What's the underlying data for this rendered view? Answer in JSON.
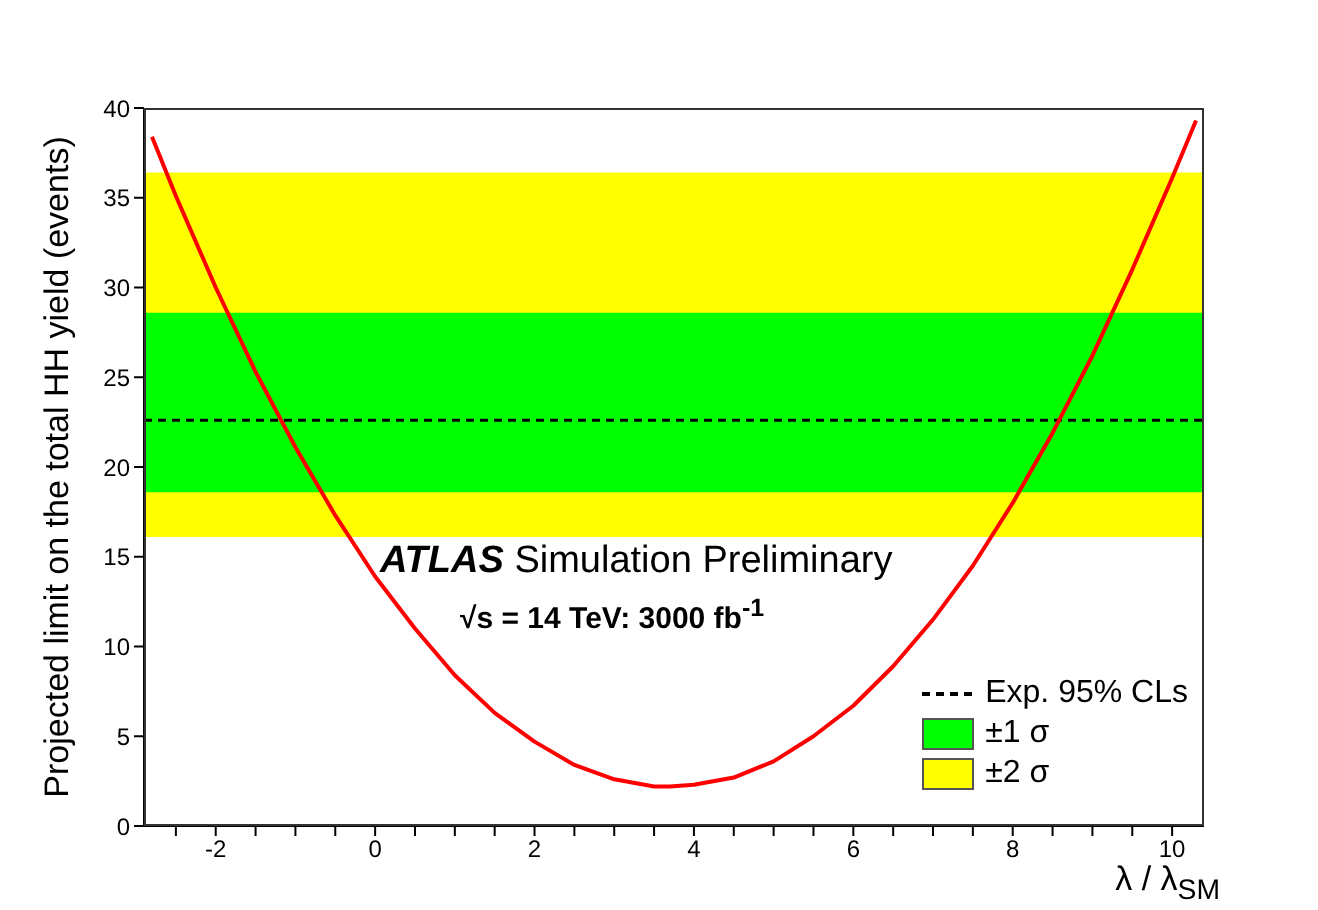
{
  "chart_data": {
    "type": "line",
    "xlabel": "λ / λ$_{SM}$",
    "ylabel": "Projected limit on the total HH yield (events)",
    "x": [
      -2.8,
      -2.5,
      -2,
      -1.5,
      -1,
      -0.5,
      0,
      0.5,
      1,
      1.5,
      2,
      2.5,
      3,
      3.5,
      3.7,
      4,
      4.5,
      5,
      5.5,
      6,
      6.5,
      7,
      7.5,
      8,
      8.5,
      9,
      9.5,
      10,
      10.3
    ],
    "series": [
      {
        "color": "#ff0000",
        "values": [
          38.4,
          35.1,
          30.0,
          25.3,
          21.1,
          17.3,
          13.9,
          11.0,
          8.4,
          6.3,
          4.7,
          3.4,
          2.6,
          2.2,
          2.2,
          2.3,
          2.7,
          3.6,
          5.0,
          6.7,
          8.9,
          11.5,
          14.5,
          18.0,
          21.9,
          26.2,
          31.0,
          36.1,
          39.3
        ]
      }
    ],
    "xlim": [
      -2.9,
      10.4
    ],
    "ylim": [
      0,
      40
    ],
    "xticks": [
      {
        "value": -2.5,
        "label": null
      },
      -2,
      {
        "value": -1.5,
        "label": null
      },
      {
        "value": -1,
        "label": null
      },
      {
        "value": -0.5,
        "label": null
      },
      0,
      {
        "value": 0.5,
        "label": null
      },
      {
        "value": 1,
        "label": null
      },
      {
        "value": 1.5,
        "label": null
      },
      2,
      {
        "value": 2.5,
        "label": null
      },
      {
        "value": 3,
        "label": null
      },
      {
        "value": 3.5,
        "label": null
      },
      4,
      {
        "value": 4.5,
        "label": null
      },
      {
        "value": 5,
        "label": null
      },
      {
        "value": 5.5,
        "label": null
      },
      6,
      {
        "value": 6.5,
        "label": null
      },
      {
        "value": 7,
        "label": null
      },
      {
        "value": 7.5,
        "label": null
      },
      8,
      {
        "value": 8.5,
        "label": null
      },
      {
        "value": 9,
        "label": null
      },
      {
        "value": 9.5,
        "label": null
      },
      10
    ],
    "yticks": [
      0,
      5,
      10,
      15,
      20,
      25,
      30,
      35,
      40
    ],
    "bands": [
      {
        "axis": "y",
        "from": 18.6,
        "to": 28.6,
        "label": "±1 σ",
        "color": "#00ff00"
      },
      {
        "axis": "y",
        "from": 16.1,
        "to": 36.4,
        "label": "±2 σ",
        "color": "#ffff00"
      }
    ],
    "ref_lines": [
      {
        "axis": "y",
        "value": 22.6,
        "label": "Exp. 95% CLs",
        "color": "#000000",
        "line_style": "dashed"
      }
    ],
    "annotations": [
      "ATLAS Simulation Preliminary",
      "√s = 14 TeV: 3000 fb$^{-1}$"
    ],
    "legend": "bottom right",
    "marker": "none",
    "line_style": "solid",
    "grid": false
  }
}
